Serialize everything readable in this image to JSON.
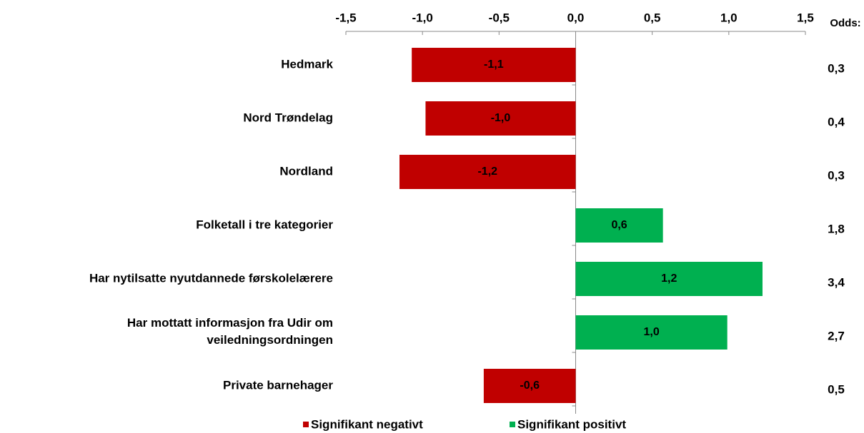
{
  "chart_data": {
    "type": "bar",
    "orientation": "horizontal",
    "categories": [
      "Hedmark",
      "Nord Trøndelag",
      "Nordland",
      "Folketall i tre kategorier",
      "Har nytilsatte nyutdannede førskolelærere",
      [
        "Har mottatt informasjon fra Udir om",
        "veiledningsordningen"
      ],
      "Private barnehager"
    ],
    "values": [
      -1.07,
      -0.98,
      -1.15,
      0.57,
      1.22,
      0.99,
      -0.6
    ],
    "value_labels": [
      "-1,1",
      "-1,0",
      "-1,2",
      "0,6",
      "1,2",
      "1,0",
      "-0,6"
    ],
    "colors": [
      "#c00000",
      "#c00000",
      "#c00000",
      "#00b050",
      "#00b050",
      "#00b050",
      "#c00000"
    ],
    "xlim": [
      -1.5,
      1.5
    ],
    "xticks": [
      {
        "value": -1.5,
        "label": "-1,5"
      },
      {
        "value": -1,
        "label": "-1,0"
      },
      {
        "value": -0.5,
        "label": "-0,5"
      },
      {
        "value": 0,
        "label": "0,0"
      },
      {
        "value": 0.5,
        "label": "0,5"
      },
      {
        "value": 1,
        "label": "1,0"
      },
      {
        "value": 1.5,
        "label": "1,5"
      }
    ],
    "odds_label": "Odds:",
    "odds": [
      "0,3",
      "0,4",
      "0,3",
      "1,8",
      "3,4",
      "2,7",
      "0,5"
    ],
    "legend": [
      {
        "name": "Signifikant negativt",
        "color": "#c00000"
      },
      {
        "name": "Signifikant positivt",
        "color": "#00b050"
      }
    ]
  }
}
